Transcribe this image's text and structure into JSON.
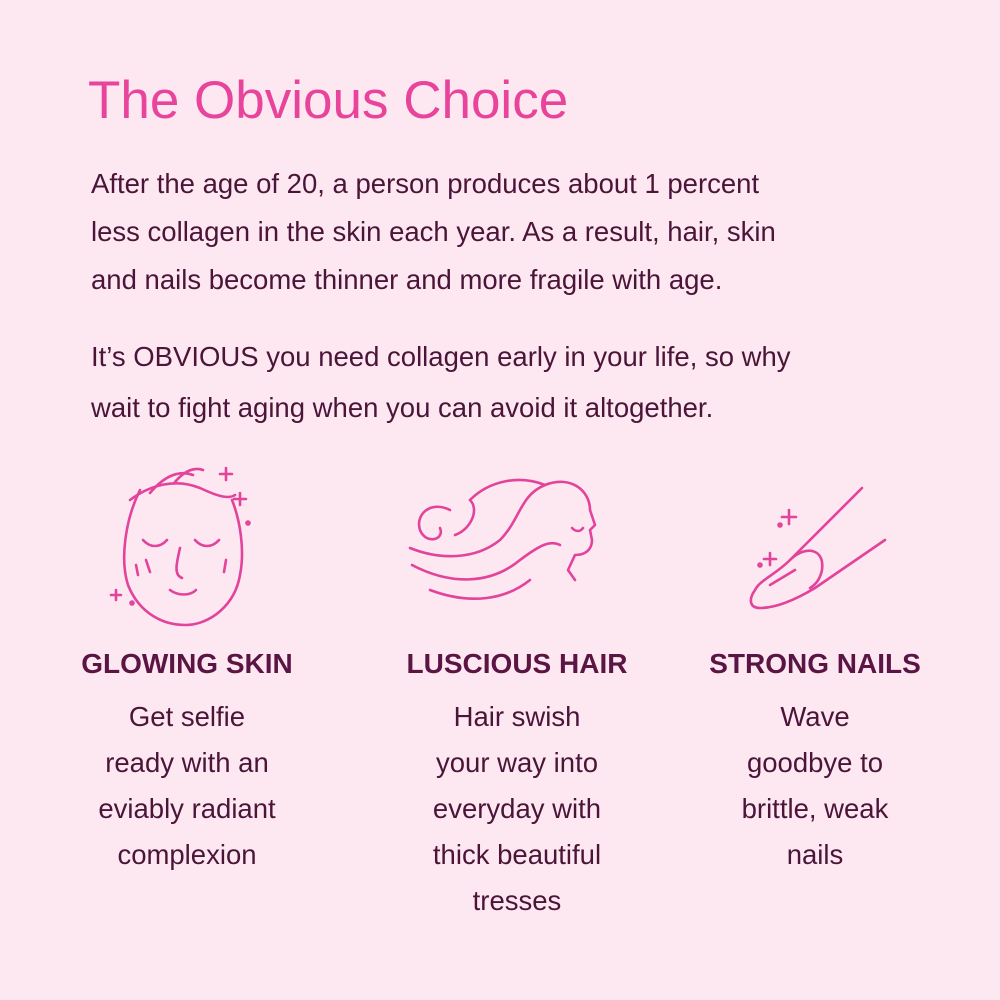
{
  "header": {
    "title": "The Obvious Choice"
  },
  "paragraphs": [
    [
      "After the age of 20, a person produces about 1 percent",
      "less collagen in the skin each year. As a result, hair, skin",
      "and nails become thinner and more fragile with age."
    ],
    [
      "It’s OBVIOUS you need collagen early in your life, so why",
      "wait to fight aging when you can avoid it altogether."
    ]
  ],
  "features": [
    {
      "heading": "GLOWING SKIN",
      "lines": [
        "Get selfie",
        "ready with an",
        "eviably radiant",
        "complexion"
      ]
    },
    {
      "heading": "LUSCIOUS HAIR",
      "lines": [
        "Hair swish",
        "your way into",
        "everyday with",
        "thick beautiful",
        "tresses"
      ]
    },
    {
      "heading": "STRONG NAILS",
      "lines": [
        "Wave",
        "goodbye to",
        "brittle, weak",
        "nails"
      ]
    }
  ]
}
